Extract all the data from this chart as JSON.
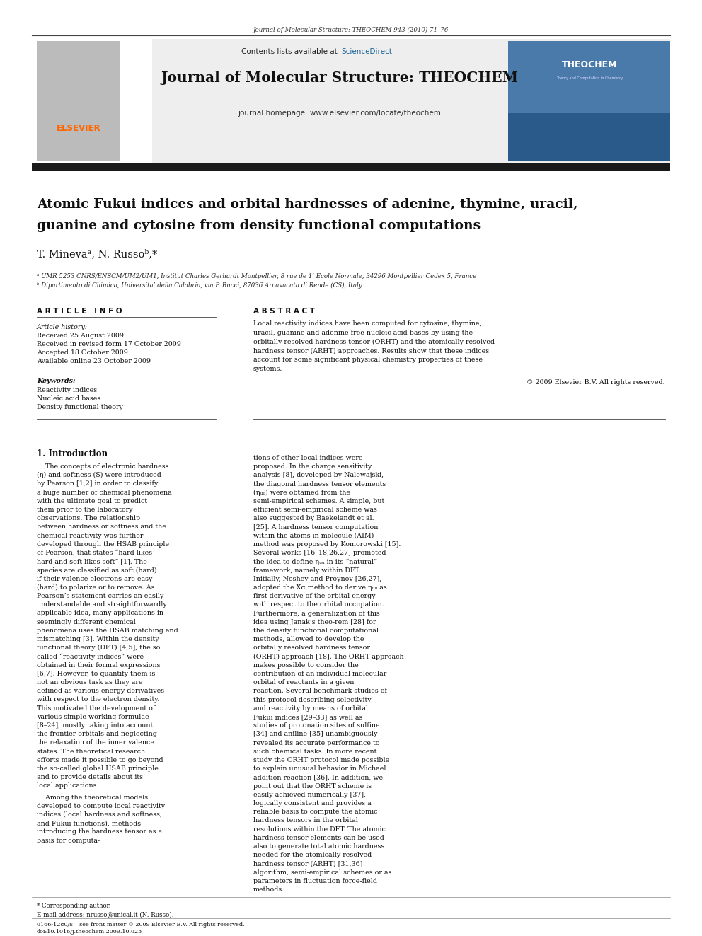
{
  "page_width": 9.92,
  "page_height": 13.23,
  "bg_color": "#ffffff",
  "journal_header_text": "Journal of Molecular Structure: THEOCHEM 943 (2010) 71–76",
  "journal_name": "Journal of Molecular Structure: THEOCHEM",
  "journal_homepage": "journal homepage: www.elsevier.com/locate/theochem",
  "sciencedirect_color": "#1a6496",
  "elsevier_color": "#ff6600",
  "paper_title_line1": "Atomic Fukui indices and orbital hardnesses of adenine, thymine, uracil,",
  "paper_title_line2": "guanine and cytosine from density functional computations",
  "authors": "T. Minevaᵃ, N. Russoᵇ,*",
  "affil_a": "ᵃ UMR 5253 CNRS/ENSCM/UM2/UM1, Institut Charles Gerhardt Montpellier, 8 rue de 1’ Ecole Normale, 34296 Montpellier Cedex 5, France",
  "affil_b": "ᵇ Dipartimento di Chimica, Universita’ della Calabria, via P. Bucci, 87036 Arcavacata di Rende (CS), Italy",
  "article_info_title": "A R T I C L E   I N F O",
  "abstract_title": "A B S T R A C T",
  "article_history_label": "Article history:",
  "received": "Received 25 August 2009",
  "received_revised": "Received in revised form 17 October 2009",
  "accepted": "Accepted 18 October 2009",
  "available": "Available online 23 October 2009",
  "keywords_label": "Keywords:",
  "kw1": "Reactivity indices",
  "kw2": "Nucleic acid bases",
  "kw3": "Density functional theory",
  "abstract_text": "Local reactivity indices have been computed for cytosine, thymine, uracil, guanine and adenine free nucleic acid bases by using the orbitally resolved hardness tensor (ORHT) and the atomically resolved hardness tensor (ARHT) approaches. Results show that these indices account for some significant physical chemistry properties of these systems.",
  "copyright": "© 2009 Elsevier B.V. All rights reserved.",
  "section1_title": "1. Introduction",
  "intro_para1": "The concepts of electronic hardness (η) and softness (S) were introduced by Pearson [1,2] in order to classify a huge number of chemical phenomena with the ultimate goal to predict them prior to the laboratory observations. The relationship between hardness or softness and the chemical reactivity was further developed through the HSAB principle of Pearson, that states “hard likes hard and soft likes soft” [1]. The species are classified as soft (hard) if their valence electrons are easy (hard) to polarize or to remove. As Pearson’s statement carries an easily understandable and straightforwardly applicable idea, many applications in seemingly different chemical phenomena uses the HSAB matching and mismatching [3]. Within the density functional theory (DFT) [4,5], the so called “reactivity indices” were obtained in their formal expressions [6,7]. However, to quantify them is not an obvious task as they are defined as various energy derivatives with respect to the electron density. This motivated the development of various simple working formulae [8–24], mostly taking into account the frontier orbitals and neglecting the relaxation of the inner valence states. The theoretical research efforts made it possible to go beyond the so-called global HSAB principle and to provide details about its local applications.",
  "intro_para2": "Among the theoretical models developed to compute local reactivity indices (local hardness and softness, and Fukui functions), methods introducing the hardness tensor as a basis for computa-",
  "right_col_para1": "tions of other local indices were proposed. In the charge sensitivity analysis [8], developed by Nalewajski, the diagonal hardness tensor elements (ηᵤᵤ) were obtained from the semi-empirical schemes. A simple, but efficient semi-empirical scheme was also suggested by Baekelandt et al. [25]. A hardness tensor computation within the atoms in molecule (AIM) method was proposed by Komorowski [15]. Several works [16–18,26,27] promoted the idea to define ηᵤᵤ in its “natural” framework, namely within DFT. Initially, Neshev and Proynov [26,27], adopted the Xα method to derive ηᵤᵤ as first derivative of the orbital energy with respect to the orbital occupation. Furthermore, a generalization of this idea using Janak’s theo-rem [28] for the density functional computational methods, allowed to develop the orbitally resolved hardness tensor (ORHT) approach [18]. The ORHT approach makes possible to consider the contribution of an individual molecular orbital of reactants in a given reaction. Several benchmark studies of this protocol describing selectivity and reactivity by means of orbital Fukui indices [29–33] as well as studies of protonation sites of sulfine [34] and aniline [35] unambiguously revealed its accurate performance to such chemical tasks. In more recent study the ORHT protocol made possible to explain unusual behavior in Michael addition reaction [36]. In addition, we point out that the ORHT scheme is easily achieved numerically [37], logically consistent and provides a reliable basis to compute the atomic hardness tensors in the orbital resolutions within the DFT. The atomic hardness tensor elements can be used also to generate total atomic hardness needed for the atomically resolved hardness tensor (ARHT) [31,36] algorithm, semi-empirical schemes or as parameters in fluctuation force-field methods.",
  "footnote_star": "* Corresponding author.",
  "footnote_email": "E-mail address: nrusso@unical.it (N. Russo).",
  "issn_text": "0166-1280/$ – see front matter © 2009 Elsevier B.V. All rights reserved.",
  "doi_text": "doi:10.1016/j.theochem.2009.10.023",
  "header_bar_color": "#1a1a1a",
  "light_gray_bg": "#eeeeee"
}
